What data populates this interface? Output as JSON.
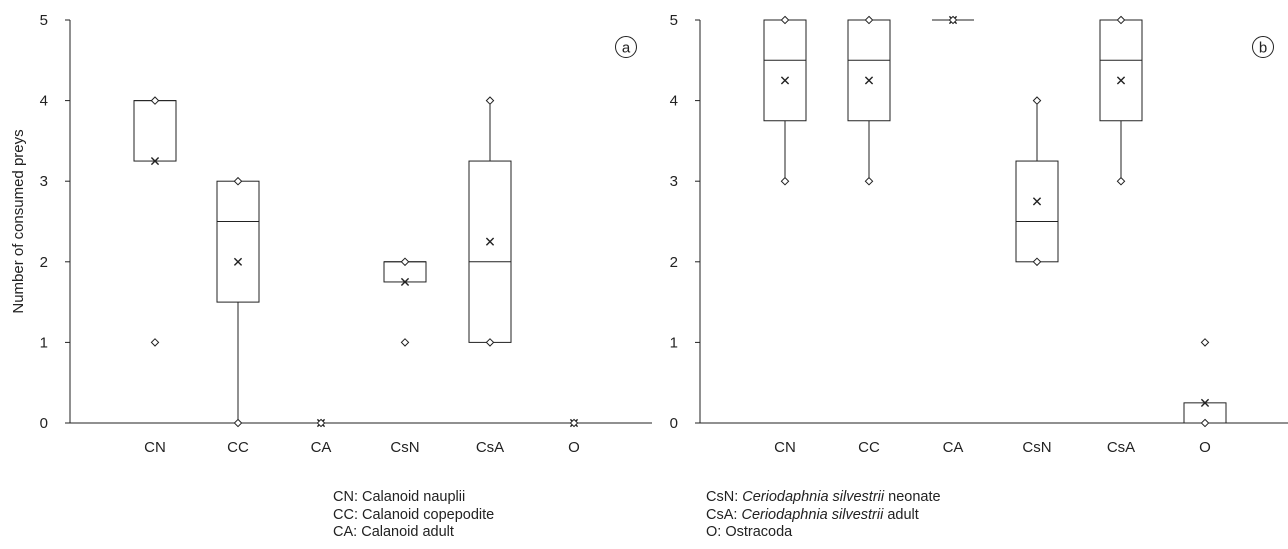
{
  "chart_data": [
    {
      "type": "box",
      "panel_label": "a",
      "ylabel": "Number of consumed preys",
      "ylim": [
        0,
        5
      ],
      "yticks": [
        0,
        1,
        2,
        3,
        4,
        5
      ],
      "categories": [
        "CN",
        "CC",
        "CA",
        "CsN",
        "CsA",
        "O"
      ],
      "boxes": [
        {
          "category": "CN",
          "min": 1,
          "q1": 3.25,
          "median": 4,
          "q3": 4,
          "max": 4,
          "mean": 3.25,
          "whisker_low": 3.25,
          "whisker_high": 4
        },
        {
          "category": "CC",
          "min": 0,
          "q1": 1.5,
          "median": 2.5,
          "q3": 3,
          "max": 3,
          "mean": 2,
          "whisker_low": 0,
          "whisker_high": 3
        },
        {
          "category": "CA",
          "min": 0,
          "q1": 0,
          "median": 0,
          "q3": 0,
          "max": 0,
          "mean": 0,
          "whisker_low": 0,
          "whisker_high": 0
        },
        {
          "category": "CsN",
          "min": 1,
          "q1": 1.75,
          "median": 2,
          "q3": 2,
          "max": 2,
          "mean": 1.75,
          "whisker_low": 1.75,
          "whisker_high": 2
        },
        {
          "category": "CsA",
          "min": 1,
          "q1": 1,
          "median": 2,
          "q3": 3.25,
          "max": 4,
          "mean": 2.25,
          "whisker_low": 1,
          "whisker_high": 4
        },
        {
          "category": "O",
          "min": 0,
          "q1": 0,
          "median": 0,
          "q3": 0,
          "max": 0,
          "mean": 0,
          "whisker_low": 0,
          "whisker_high": 0
        }
      ]
    },
    {
      "type": "box",
      "panel_label": "b",
      "ylabel": "",
      "ylim": [
        0,
        5
      ],
      "yticks": [
        0,
        1,
        2,
        3,
        4,
        5
      ],
      "categories": [
        "CN",
        "CC",
        "CA",
        "CsN",
        "CsA",
        "O"
      ],
      "boxes": [
        {
          "category": "CN",
          "min": 3,
          "q1": 3.75,
          "median": 4.5,
          "q3": 5,
          "max": 5,
          "mean": 4.25,
          "whisker_low": 3,
          "whisker_high": 5
        },
        {
          "category": "CC",
          "min": 3,
          "q1": 3.75,
          "median": 4.5,
          "q3": 5,
          "max": 5,
          "mean": 4.25,
          "whisker_low": 3,
          "whisker_high": 5
        },
        {
          "category": "CA",
          "min": 5,
          "q1": 5,
          "median": 5,
          "q3": 5,
          "max": 5,
          "mean": 5,
          "whisker_low": 5,
          "whisker_high": 5
        },
        {
          "category": "CsN",
          "min": 2,
          "q1": 2,
          "median": 2.5,
          "q3": 3.25,
          "max": 4,
          "mean": 2.75,
          "whisker_low": 2,
          "whisker_high": 4
        },
        {
          "category": "CsA",
          "min": 3,
          "q1": 3.75,
          "median": 4.5,
          "q3": 5,
          "max": 5,
          "mean": 4.25,
          "whisker_low": 3,
          "whisker_high": 5
        },
        {
          "category": "O",
          "min": 0,
          "q1": 0,
          "median": 0,
          "q3": 0.25,
          "max": 1,
          "mean": 0.25,
          "whisker_low": 0,
          "whisker_high": 0.25
        }
      ]
    }
  ],
  "legend": {
    "left": [
      {
        "abbr": "CN",
        "text": "Calanoid nauplii"
      },
      {
        "abbr": "CC",
        "text": "Calanoid copepodite"
      },
      {
        "abbr": "CA",
        "text": "Calanoid adult"
      }
    ],
    "right": [
      {
        "abbr": "CsN",
        "italic": "Ceriodaphnia silvestrii",
        "text": " neonate"
      },
      {
        "abbr": "CsA",
        "italic": "Ceriodaphnia silvestrii",
        "text": " adult"
      },
      {
        "abbr": "O",
        "italic": "",
        "text": "Ostracoda"
      }
    ]
  }
}
